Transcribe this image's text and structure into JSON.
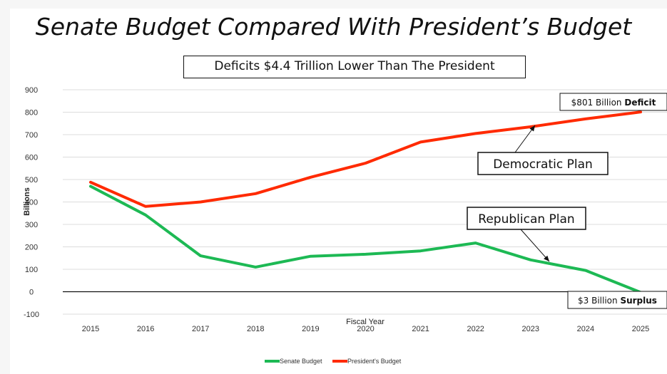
{
  "chart_data": {
    "type": "line",
    "title": "Senate Budget Compared With President’s Budget",
    "subtitle": "Deficits $4.4 Trillion Lower Than The President",
    "xlabel": "Fiscal Year",
    "ylabel": "Billions",
    "ylim": [
      -100,
      900
    ],
    "yticks": [
      900,
      800,
      700,
      600,
      500,
      400,
      300,
      200,
      100,
      0,
      -100
    ],
    "categories": [
      "2015",
      "2016",
      "2017",
      "2018",
      "2019",
      "2020",
      "2021",
      "2022",
      "2023",
      "2024",
      "2025"
    ],
    "grid": "horizontal",
    "legend_position": "bottom",
    "series": [
      {
        "name": "Senate Budget",
        "color": "#1db954",
        "values": [
          470,
          342,
          160,
          110,
          158,
          167,
          182,
          217,
          142,
          95,
          -3
        ]
      },
      {
        "name": "President's Budget",
        "color": "#ff2a00",
        "values": [
          488,
          380,
          400,
          437,
          510,
          573,
          667,
          705,
          735,
          770,
          801
        ]
      }
    ],
    "annotations": {
      "democratic_plan": "Democratic Plan",
      "republican_plan": "Republican Plan",
      "deficit_prefix": "$801 Billion ",
      "deficit_bold": "Deficit",
      "surplus_prefix": "$3 Billion ",
      "surplus_bold": "Surplus"
    }
  }
}
